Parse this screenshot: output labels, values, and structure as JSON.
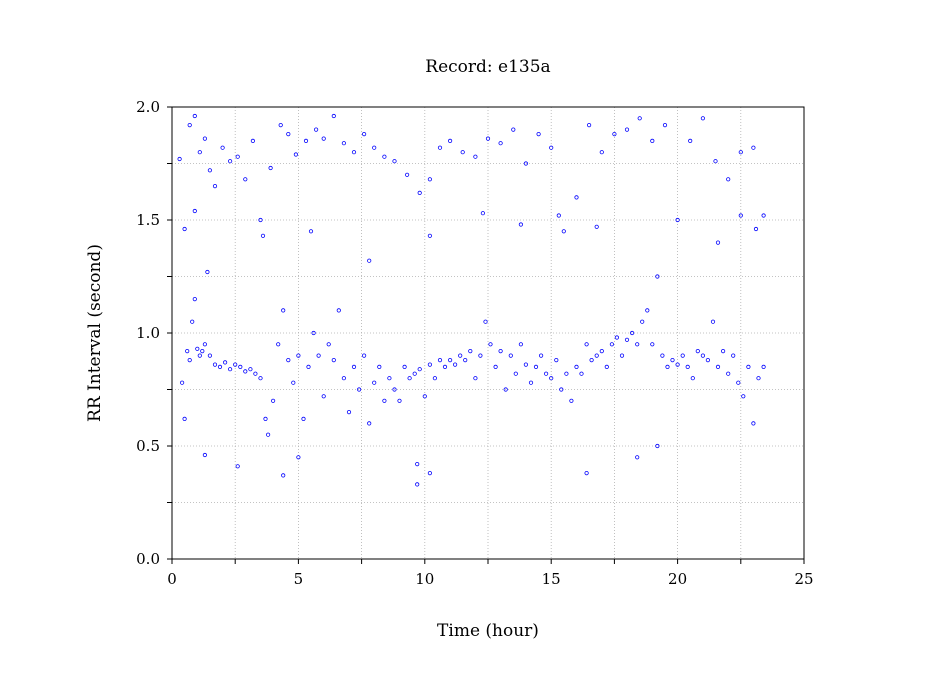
{
  "chart_data": {
    "type": "scatter",
    "title": "Record:  e135a",
    "xlabel": "Time (hour)",
    "ylabel": "RR Interval (second)",
    "xlim": [
      0,
      25
    ],
    "ylim": [
      0,
      2.0
    ],
    "x_ticks": [
      0,
      5,
      10,
      15,
      20,
      25
    ],
    "x_tick_labels": [
      "0",
      "5",
      "10",
      "15",
      "20",
      "25"
    ],
    "y_ticks": [
      0.0,
      0.5,
      1.0,
      1.5,
      2.0
    ],
    "y_tick_labels": [
      "0.0",
      "0.5",
      "1.0",
      "1.5",
      "2.0"
    ],
    "grid": true,
    "marker_color": "#0000ff",
    "series": [
      {
        "points": [
          [
            0.4,
            0.78
          ],
          [
            0.5,
            0.62
          ],
          [
            0.6,
            0.92
          ],
          [
            0.7,
            0.88
          ],
          [
            0.8,
            1.05
          ],
          [
            0.9,
            1.15
          ],
          [
            1.0,
            0.93
          ],
          [
            1.1,
            0.9
          ],
          [
            1.2,
            0.92
          ],
          [
            1.3,
            0.95
          ],
          [
            1.5,
            0.9
          ],
          [
            1.7,
            0.86
          ],
          [
            1.9,
            0.85
          ],
          [
            2.1,
            0.87
          ],
          [
            2.3,
            0.84
          ],
          [
            2.5,
            0.86
          ],
          [
            2.7,
            0.85
          ],
          [
            2.9,
            0.83
          ],
          [
            3.1,
            0.84
          ],
          [
            3.3,
            0.82
          ],
          [
            3.5,
            0.8
          ],
          [
            3.7,
            0.62
          ],
          [
            3.8,
            0.55
          ],
          [
            4.0,
            0.7
          ],
          [
            4.2,
            0.95
          ],
          [
            4.4,
            1.1
          ],
          [
            4.6,
            0.88
          ],
          [
            4.8,
            0.78
          ],
          [
            5.0,
            0.9
          ],
          [
            5.2,
            0.62
          ],
          [
            5.4,
            0.85
          ],
          [
            5.6,
            1.0
          ],
          [
            5.8,
            0.9
          ],
          [
            6.0,
            0.72
          ],
          [
            6.2,
            0.95
          ],
          [
            6.4,
            0.88
          ],
          [
            6.6,
            1.1
          ],
          [
            6.8,
            0.8
          ],
          [
            7.0,
            0.65
          ],
          [
            7.2,
            0.85
          ],
          [
            7.4,
            0.75
          ],
          [
            7.6,
            0.9
          ],
          [
            7.8,
            0.6
          ],
          [
            8.0,
            0.78
          ],
          [
            8.2,
            0.85
          ],
          [
            8.4,
            0.7
          ],
          [
            8.6,
            0.8
          ],
          [
            8.8,
            0.75
          ],
          [
            9.0,
            0.7
          ],
          [
            9.2,
            0.85
          ],
          [
            9.4,
            0.8
          ],
          [
            9.6,
            0.82
          ],
          [
            9.8,
            0.84
          ],
          [
            10.0,
            0.72
          ],
          [
            10.2,
            0.86
          ],
          [
            10.4,
            0.8
          ],
          [
            10.6,
            0.88
          ],
          [
            10.8,
            0.85
          ],
          [
            11.0,
            0.88
          ],
          [
            11.2,
            0.86
          ],
          [
            11.4,
            0.9
          ],
          [
            11.6,
            0.88
          ],
          [
            11.8,
            0.92
          ],
          [
            12.0,
            0.8
          ],
          [
            12.2,
            0.9
          ],
          [
            12.4,
            1.05
          ],
          [
            12.6,
            0.95
          ],
          [
            12.8,
            0.85
          ],
          [
            13.0,
            0.92
          ],
          [
            13.2,
            0.75
          ],
          [
            13.4,
            0.9
          ],
          [
            13.6,
            0.82
          ],
          [
            13.8,
            0.95
          ],
          [
            14.0,
            0.86
          ],
          [
            14.2,
            0.78
          ],
          [
            14.4,
            0.85
          ],
          [
            14.6,
            0.9
          ],
          [
            14.8,
            0.82
          ],
          [
            15.0,
            0.8
          ],
          [
            15.2,
            0.88
          ],
          [
            15.4,
            0.75
          ],
          [
            15.6,
            0.82
          ],
          [
            15.8,
            0.7
          ],
          [
            16.0,
            0.85
          ],
          [
            16.2,
            0.82
          ],
          [
            16.4,
            0.95
          ],
          [
            16.6,
            0.88
          ],
          [
            16.8,
            0.9
          ],
          [
            17.0,
            0.92
          ],
          [
            17.2,
            0.85
          ],
          [
            17.4,
            0.95
          ],
          [
            17.6,
            0.98
          ],
          [
            17.8,
            0.9
          ],
          [
            18.0,
            0.97
          ],
          [
            18.2,
            1.0
          ],
          [
            18.4,
            0.95
          ],
          [
            18.6,
            1.05
          ],
          [
            18.8,
            1.1
          ],
          [
            19.0,
            0.95
          ],
          [
            19.2,
            1.25
          ],
          [
            19.4,
            0.9
          ],
          [
            19.6,
            0.85
          ],
          [
            19.8,
            0.88
          ],
          [
            20.0,
            0.86
          ],
          [
            20.2,
            0.9
          ],
          [
            20.4,
            0.85
          ],
          [
            20.6,
            0.8
          ],
          [
            20.8,
            0.92
          ],
          [
            21.0,
            0.9
          ],
          [
            21.2,
            0.88
          ],
          [
            21.4,
            1.05
          ],
          [
            21.6,
            0.85
          ],
          [
            21.8,
            0.92
          ],
          [
            22.0,
            0.82
          ],
          [
            22.2,
            0.9
          ],
          [
            22.4,
            0.78
          ],
          [
            22.6,
            0.72
          ],
          [
            22.8,
            0.85
          ],
          [
            23.0,
            0.6
          ],
          [
            23.2,
            0.8
          ],
          [
            23.4,
            0.85
          ],
          [
            0.3,
            1.77
          ],
          [
            0.5,
            1.46
          ],
          [
            0.7,
            1.92
          ],
          [
            0.9,
            1.96
          ],
          [
            1.1,
            1.8
          ],
          [
            1.3,
            1.86
          ],
          [
            1.5,
            1.72
          ],
          [
            1.7,
            1.65
          ],
          [
            2.0,
            1.82
          ],
          [
            2.3,
            1.76
          ],
          [
            2.6,
            1.78
          ],
          [
            2.9,
            1.68
          ],
          [
            3.2,
            1.85
          ],
          [
            3.5,
            1.5
          ],
          [
            3.9,
            1.73
          ],
          [
            4.3,
            1.92
          ],
          [
            4.6,
            1.88
          ],
          [
            4.9,
            1.79
          ],
          [
            5.3,
            1.85
          ],
          [
            5.7,
            1.9
          ],
          [
            6.0,
            1.86
          ],
          [
            6.4,
            1.96
          ],
          [
            6.8,
            1.84
          ],
          [
            7.2,
            1.8
          ],
          [
            7.6,
            1.88
          ],
          [
            8.0,
            1.82
          ],
          [
            8.4,
            1.78
          ],
          [
            8.8,
            1.76
          ],
          [
            9.3,
            1.7
          ],
          [
            9.8,
            1.62
          ],
          [
            10.2,
            1.68
          ],
          [
            10.6,
            1.82
          ],
          [
            11.0,
            1.85
          ],
          [
            11.5,
            1.8
          ],
          [
            12.0,
            1.78
          ],
          [
            12.5,
            1.86
          ],
          [
            13.0,
            1.84
          ],
          [
            13.5,
            1.9
          ],
          [
            14.0,
            1.75
          ],
          [
            14.5,
            1.88
          ],
          [
            15.0,
            1.82
          ],
          [
            15.5,
            1.45
          ],
          [
            16.0,
            1.6
          ],
          [
            16.5,
            1.92
          ],
          [
            17.0,
            1.8
          ],
          [
            17.5,
            1.88
          ],
          [
            18.0,
            1.9
          ],
          [
            18.5,
            1.95
          ],
          [
            19.0,
            1.85
          ],
          [
            19.5,
            1.92
          ],
          [
            20.0,
            1.5
          ],
          [
            20.5,
            1.85
          ],
          [
            21.0,
            1.95
          ],
          [
            21.5,
            1.76
          ],
          [
            22.0,
            1.68
          ],
          [
            22.5,
            1.8
          ],
          [
            23.0,
            1.82
          ],
          [
            23.4,
            1.52
          ],
          [
            0.9,
            1.54
          ],
          [
            1.4,
            1.27
          ],
          [
            3.6,
            1.43
          ],
          [
            5.5,
            1.45
          ],
          [
            7.8,
            1.32
          ],
          [
            10.2,
            1.43
          ],
          [
            12.3,
            1.53
          ],
          [
            13.8,
            1.48
          ],
          [
            15.3,
            1.52
          ],
          [
            16.8,
            1.47
          ],
          [
            21.6,
            1.4
          ],
          [
            22.5,
            1.52
          ],
          [
            23.1,
            1.46
          ],
          [
            2.6,
            0.41
          ],
          [
            4.4,
            0.37
          ],
          [
            5.0,
            0.45
          ],
          [
            9.7,
            0.42
          ],
          [
            9.7,
            0.33
          ],
          [
            10.2,
            0.38
          ],
          [
            16.4,
            0.38
          ],
          [
            18.4,
            0.45
          ],
          [
            19.2,
            0.5
          ],
          [
            1.3,
            0.46
          ]
        ]
      }
    ]
  }
}
